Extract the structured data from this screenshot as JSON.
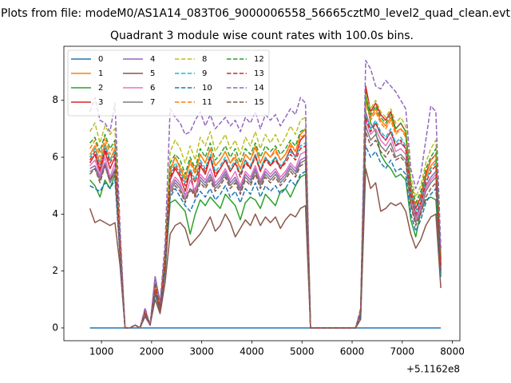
{
  "figure": {
    "suptitle": "Plots from file: modeM0/AS1A14_083T06_9000006558_56665cztM0_level2_quad_clean.evt",
    "x_offset_label": "+5.1162e8"
  },
  "chart_data": {
    "type": "line",
    "title": "Quadrant 3 module wise count rates with 100.0s bins.",
    "xlabel": "",
    "ylabel": "",
    "xlim": [
      250,
      8150
    ],
    "ylim": [
      -0.45,
      9.9
    ],
    "x_ticks": [
      1000,
      2000,
      3000,
      4000,
      5000,
      6000,
      7000,
      8000
    ],
    "y_ticks": [
      0,
      2,
      4,
      6,
      8
    ],
    "grid": false,
    "legend_position": "top-left",
    "legend_columns": 4,
    "x": [
      770,
      870,
      970,
      1070,
      1170,
      1270,
      1370,
      1470,
      1570,
      1670,
      1770,
      1870,
      1970,
      2070,
      2170,
      2270,
      2370,
      2470,
      2570,
      2670,
      2770,
      2870,
      2970,
      3070,
      3170,
      3270,
      3370,
      3470,
      3570,
      3670,
      3770,
      3870,
      3970,
      4070,
      4170,
      4270,
      4370,
      4470,
      4570,
      4670,
      4770,
      4870,
      4970,
      5070,
      5170,
      6070,
      6170,
      6270,
      6370,
      6470,
      6570,
      6670,
      6770,
      6870,
      6970,
      7070,
      7170,
      7270,
      7370,
      7470,
      7570,
      7670,
      7770
    ],
    "series": [
      {
        "name": "0",
        "color": "#1f77b4",
        "dash": "solid",
        "values": [
          0.0,
          0.0,
          0.0,
          0.0,
          0.0,
          0.0,
          0.0,
          0.0,
          0.0,
          0.0,
          0.0,
          0.0,
          0.0,
          0.0,
          0.0,
          0.0,
          0.0,
          0.0,
          0.0,
          0.0,
          0.0,
          0.0,
          0.0,
          0.0,
          0.0,
          0.0,
          0.0,
          0.0,
          0.0,
          0.0,
          0.0,
          0.0,
          0.0,
          0.0,
          0.0,
          0.0,
          0.0,
          0.0,
          0.0,
          0.0,
          0.0,
          0.0,
          0.0,
          0.0,
          0.0,
          0.0,
          0.0,
          0.0,
          0.0,
          0.0,
          0.0,
          0.0,
          0.0,
          0.0,
          0.0,
          0.0,
          0.0,
          0.0,
          0.0,
          0.0,
          0.0,
          0.0,
          0.0
        ]
      },
      {
        "name": "1",
        "color": "#ff7f0e",
        "dash": "solid",
        "values": [
          6.1,
          6.4,
          5.8,
          6.5,
          5.9,
          6.3,
          3.0,
          0.0,
          0.0,
          0.1,
          0.0,
          0.6,
          0.1,
          1.5,
          0.8,
          2.5,
          5.5,
          6.0,
          5.6,
          5.2,
          5.9,
          5.5,
          6.1,
          5.8,
          6.3,
          5.7,
          5.9,
          6.2,
          5.8,
          6.0,
          5.6,
          6.1,
          5.9,
          6.4,
          5.8,
          6.2,
          6.0,
          6.3,
          5.9,
          6.1,
          6.5,
          6.2,
          6.8,
          7.0,
          0.0,
          0.0,
          0.6,
          8.0,
          7.4,
          7.7,
          7.3,
          7.1,
          7.4,
          6.9,
          7.0,
          6.8,
          5.0,
          3.8,
          4.4,
          5.3,
          5.7,
          5.9,
          2.4
        ]
      },
      {
        "name": "2",
        "color": "#2ca02c",
        "dash": "solid",
        "values": [
          5.2,
          5.0,
          4.6,
          5.2,
          4.9,
          5.4,
          2.6,
          0.0,
          0.0,
          0.1,
          0.0,
          0.5,
          0.1,
          1.2,
          0.6,
          2.0,
          4.4,
          4.5,
          4.3,
          4.1,
          3.3,
          4.0,
          4.5,
          4.3,
          4.6,
          4.4,
          4.2,
          4.7,
          4.5,
          4.3,
          3.8,
          4.4,
          4.6,
          4.5,
          4.2,
          4.7,
          4.5,
          4.3,
          4.8,
          4.9,
          4.6,
          5.0,
          5.3,
          5.4,
          0.0,
          0.0,
          0.5,
          8.3,
          7.2,
          6.9,
          6.1,
          5.8,
          5.6,
          5.3,
          5.4,
          5.2,
          3.8,
          3.2,
          4.1,
          4.5,
          4.6,
          4.5,
          1.9
        ]
      },
      {
        "name": "3",
        "color": "#d62728",
        "dash": "solid",
        "values": [
          5.8,
          6.1,
          5.5,
          6.2,
          5.6,
          6.0,
          2.9,
          0.0,
          0.0,
          0.1,
          0.0,
          0.6,
          0.1,
          1.4,
          0.7,
          2.3,
          5.2,
          5.6,
          5.3,
          4.8,
          5.5,
          4.6,
          5.7,
          5.4,
          6.0,
          5.3,
          5.6,
          5.9,
          5.5,
          5.8,
          5.4,
          5.9,
          5.6,
          6.1,
          5.5,
          6.0,
          5.7,
          6.0,
          5.6,
          5.9,
          6.3,
          6.0,
          6.6,
          6.8,
          0.0,
          0.0,
          0.5,
          8.5,
          7.6,
          7.9,
          7.5,
          7.3,
          7.6,
          7.0,
          7.2,
          6.9,
          4.9,
          4.2,
          4.6,
          5.4,
          5.9,
          6.1,
          2.3
        ]
      },
      {
        "name": "4",
        "color": "#9467bd",
        "dash": "solid",
        "values": [
          5.6,
          5.7,
          5.3,
          5.8,
          5.2,
          5.6,
          2.7,
          0.0,
          0.0,
          0.1,
          0.0,
          0.6,
          0.1,
          1.8,
          0.9,
          2.4,
          4.9,
          5.2,
          5.0,
          4.7,
          4.8,
          4.9,
          5.3,
          5.1,
          5.4,
          5.0,
          5.2,
          5.5,
          5.1,
          5.3,
          4.9,
          5.4,
          5.2,
          5.6,
          5.1,
          5.5,
          5.3,
          5.5,
          5.2,
          5.4,
          5.7,
          5.5,
          5.9,
          6.0,
          0.0,
          0.0,
          0.5,
          7.6,
          7.0,
          7.2,
          6.8,
          6.6,
          6.9,
          6.4,
          6.5,
          6.3,
          4.6,
          3.9,
          4.3,
          5.0,
          5.3,
          5.5,
          2.2
        ]
      },
      {
        "name": "5",
        "color": "#8c564b",
        "dash": "solid",
        "values": [
          4.2,
          3.7,
          3.8,
          3.7,
          3.6,
          3.7,
          2.2,
          0.0,
          0.0,
          0.1,
          0.0,
          0.4,
          0.1,
          1.0,
          0.5,
          1.6,
          3.3,
          3.6,
          3.7,
          3.5,
          2.9,
          3.1,
          3.3,
          3.6,
          3.9,
          3.4,
          3.6,
          4.0,
          3.7,
          3.2,
          3.5,
          3.8,
          3.6,
          4.0,
          3.6,
          3.9,
          3.7,
          3.9,
          3.5,
          3.8,
          4.0,
          3.9,
          4.2,
          4.3,
          0.0,
          0.0,
          0.3,
          5.6,
          4.9,
          5.1,
          4.1,
          4.2,
          4.4,
          4.3,
          4.4,
          4.1,
          3.3,
          2.8,
          3.1,
          3.6,
          3.9,
          4.0,
          1.4
        ]
      },
      {
        "name": "6",
        "color": "#e377c2",
        "dash": "solid",
        "values": [
          5.7,
          5.9,
          5.4,
          6.0,
          5.3,
          5.8,
          2.8,
          0.0,
          0.0,
          0.1,
          0.0,
          0.6,
          0.1,
          1.4,
          0.7,
          2.2,
          5.0,
          5.3,
          5.1,
          4.6,
          5.2,
          4.8,
          5.4,
          5.2,
          5.6,
          5.1,
          5.3,
          5.6,
          5.2,
          5.5,
          5.0,
          5.5,
          5.3,
          5.7,
          5.2,
          5.6,
          5.4,
          5.6,
          5.3,
          5.5,
          5.8,
          5.6,
          6.1,
          6.2,
          0.0,
          0.0,
          0.5,
          7.3,
          6.8,
          7.0,
          6.6,
          6.4,
          6.7,
          6.2,
          6.3,
          6.1,
          4.5,
          3.8,
          4.2,
          4.9,
          5.2,
          5.4,
          2.1
        ]
      },
      {
        "name": "7",
        "color": "#7f7f7f",
        "dash": "solid",
        "values": [
          5.5,
          5.6,
          5.2,
          5.7,
          5.1,
          5.5,
          2.7,
          0.0,
          0.0,
          0.1,
          0.0,
          0.5,
          0.1,
          1.3,
          0.7,
          2.1,
          4.8,
          5.1,
          4.9,
          4.5,
          4.9,
          4.7,
          5.2,
          5.0,
          5.3,
          4.9,
          5.1,
          5.4,
          5.0,
          5.2,
          4.8,
          5.3,
          5.1,
          5.5,
          5.0,
          5.4,
          5.2,
          5.4,
          5.1,
          5.3,
          5.6,
          5.4,
          5.8,
          5.9,
          0.0,
          0.0,
          0.5,
          7.1,
          6.6,
          6.8,
          6.4,
          6.2,
          6.5,
          6.0,
          6.1,
          5.9,
          4.4,
          3.7,
          4.1,
          4.8,
          5.1,
          5.3,
          2.0
        ]
      },
      {
        "name": "8",
        "color": "#bcbd22",
        "dash": "dashed",
        "values": [
          6.9,
          7.2,
          6.5,
          7.1,
          6.8,
          7.0,
          3.3,
          0.0,
          0.0,
          0.1,
          0.0,
          0.7,
          0.1,
          1.6,
          0.8,
          2.7,
          6.2,
          6.6,
          6.3,
          5.8,
          6.4,
          5.9,
          6.7,
          6.4,
          6.9,
          6.2,
          6.5,
          6.8,
          6.3,
          6.6,
          6.1,
          6.7,
          6.4,
          6.9,
          6.3,
          6.8,
          6.5,
          6.8,
          6.4,
          6.7,
          7.1,
          6.8,
          7.3,
          7.4,
          0.0,
          0.0,
          0.6,
          8.2,
          7.7,
          8.0,
          7.6,
          7.4,
          7.7,
          7.2,
          7.4,
          7.1,
          5.3,
          4.6,
          5.0,
          5.8,
          6.3,
          6.6,
          2.5
        ]
      },
      {
        "name": "9",
        "color": "#17becf",
        "dash": "dashed",
        "values": [
          6.0,
          6.3,
          5.7,
          6.4,
          5.9,
          6.2,
          3.0,
          0.0,
          0.0,
          0.1,
          0.0,
          0.6,
          0.1,
          1.5,
          0.8,
          2.4,
          5.4,
          5.8,
          5.5,
          5.1,
          5.6,
          5.2,
          5.9,
          5.6,
          6.1,
          5.5,
          5.7,
          6.0,
          5.6,
          5.9,
          5.4,
          5.9,
          5.7,
          6.1,
          5.6,
          6.0,
          5.8,
          6.0,
          5.7,
          5.9,
          6.2,
          6.0,
          6.4,
          6.5,
          0.0,
          0.0,
          0.5,
          7.5,
          7.0,
          7.3,
          6.9,
          6.7,
          7.0,
          6.5,
          6.7,
          6.4,
          4.8,
          4.1,
          4.5,
          5.2,
          5.6,
          5.8,
          2.2
        ]
      },
      {
        "name": "10",
        "color": "#1f77b4",
        "dash": "dashed",
        "values": [
          5.0,
          4.9,
          4.8,
          5.1,
          4.9,
          5.2,
          2.5,
          0.0,
          0.0,
          0.1,
          0.0,
          0.5,
          0.1,
          1.2,
          0.6,
          2.0,
          4.6,
          4.9,
          4.6,
          4.3,
          4.1,
          4.5,
          4.8,
          4.6,
          4.9,
          4.5,
          4.7,
          5.0,
          4.6,
          4.8,
          4.4,
          4.9,
          4.7,
          5.1,
          4.6,
          5.0,
          4.8,
          5.0,
          4.7,
          4.9,
          5.2,
          5.0,
          5.4,
          5.5,
          0.0,
          0.0,
          0.4,
          6.4,
          6.0,
          6.2,
          5.8,
          5.6,
          5.9,
          5.5,
          5.6,
          5.4,
          4.0,
          3.4,
          3.8,
          4.4,
          4.7,
          4.9,
          1.8
        ]
      },
      {
        "name": "11",
        "color": "#ff7f0e",
        "dash": "dashed",
        "values": [
          6.3,
          6.6,
          6.0,
          6.7,
          6.1,
          6.5,
          3.1,
          0.0,
          0.0,
          0.1,
          0.0,
          0.6,
          0.1,
          1.5,
          0.8,
          2.5,
          5.6,
          6.0,
          5.7,
          5.3,
          5.8,
          5.4,
          6.1,
          5.8,
          6.3,
          5.7,
          5.9,
          6.2,
          5.8,
          6.1,
          5.6,
          6.1,
          5.9,
          6.3,
          5.8,
          6.2,
          6.0,
          6.2,
          5.9,
          6.1,
          6.4,
          6.2,
          6.7,
          6.8,
          0.0,
          0.0,
          0.6,
          7.9,
          7.3,
          7.6,
          7.2,
          7.0,
          7.3,
          6.8,
          7.0,
          6.7,
          5.0,
          4.3,
          4.7,
          5.5,
          5.9,
          6.1,
          2.3
        ]
      },
      {
        "name": "12",
        "color": "#2ca02c",
        "dash": "dashed",
        "values": [
          6.5,
          6.7,
          6.2,
          6.8,
          6.3,
          6.6,
          3.2,
          0.0,
          0.0,
          0.1,
          0.0,
          0.6,
          0.1,
          1.6,
          0.8,
          2.6,
          5.8,
          6.1,
          5.9,
          5.4,
          6.0,
          5.6,
          6.3,
          6.0,
          6.5,
          5.9,
          6.1,
          6.4,
          6.0,
          6.3,
          5.8,
          6.3,
          6.1,
          6.5,
          6.0,
          6.4,
          6.2,
          6.4,
          6.1,
          6.3,
          6.6,
          6.4,
          6.9,
          7.0,
          0.0,
          0.0,
          0.6,
          8.1,
          7.5,
          7.8,
          7.4,
          7.2,
          7.5,
          7.0,
          7.2,
          6.9,
          5.1,
          4.4,
          4.8,
          5.6,
          6.0,
          6.3,
          2.4
        ]
      },
      {
        "name": "13",
        "color": "#d62728",
        "dash": "dashed",
        "values": [
          5.9,
          6.2,
          5.6,
          6.3,
          5.8,
          6.1,
          2.9,
          0.0,
          0.0,
          0.1,
          0.0,
          0.6,
          0.1,
          1.5,
          0.7,
          2.4,
          5.3,
          5.7,
          5.4,
          5.0,
          5.5,
          5.1,
          5.8,
          5.5,
          6.0,
          5.4,
          5.6,
          5.9,
          5.5,
          5.8,
          5.3,
          5.8,
          5.6,
          6.0,
          5.5,
          5.9,
          5.7,
          5.9,
          5.6,
          5.8,
          6.1,
          5.9,
          6.3,
          6.4,
          0.0,
          0.0,
          0.5,
          7.4,
          6.9,
          7.2,
          6.8,
          6.6,
          6.9,
          6.4,
          6.6,
          6.3,
          4.7,
          4.0,
          4.4,
          5.1,
          5.5,
          5.7,
          2.2
        ]
      },
      {
        "name": "14",
        "color": "#9467bd",
        "dash": "dashed",
        "values": [
          7.6,
          8.1,
          7.3,
          7.2,
          6.9,
          7.9,
          3.6,
          0.0,
          0.0,
          0.1,
          0.0,
          0.7,
          0.1,
          1.8,
          0.9,
          3.0,
          7.7,
          7.4,
          7.2,
          6.8,
          6.9,
          7.3,
          7.6,
          7.1,
          7.5,
          7.0,
          7.2,
          7.4,
          7.1,
          7.3,
          6.9,
          7.4,
          7.2,
          7.6,
          7.0,
          7.5,
          7.3,
          7.5,
          7.1,
          7.4,
          7.7,
          7.5,
          8.1,
          7.9,
          0.0,
          0.0,
          0.7,
          9.4,
          9.1,
          8.5,
          8.4,
          8.7,
          8.5,
          8.3,
          8.0,
          7.7,
          5.6,
          4.9,
          5.4,
          6.6,
          7.8,
          7.6,
          2.8
        ]
      },
      {
        "name": "15",
        "color": "#8c564b",
        "dash": "dashed",
        "values": [
          5.4,
          5.6,
          5.1,
          5.7,
          5.2,
          5.5,
          2.6,
          0.0,
          0.0,
          0.1,
          0.0,
          0.5,
          0.1,
          1.3,
          0.6,
          2.1,
          4.7,
          5.0,
          4.8,
          4.4,
          4.9,
          4.6,
          5.1,
          4.9,
          5.2,
          4.8,
          5.0,
          5.3,
          4.9,
          5.1,
          4.7,
          5.2,
          5.0,
          5.4,
          4.9,
          5.3,
          5.1,
          5.3,
          5.0,
          5.2,
          5.5,
          5.3,
          5.7,
          5.8,
          0.0,
          0.0,
          0.5,
          6.9,
          6.4,
          6.6,
          6.2,
          6.0,
          6.3,
          5.9,
          6.0,
          5.8,
          4.3,
          3.6,
          4.0,
          4.6,
          4.9,
          5.1,
          2.0
        ]
      }
    ]
  }
}
